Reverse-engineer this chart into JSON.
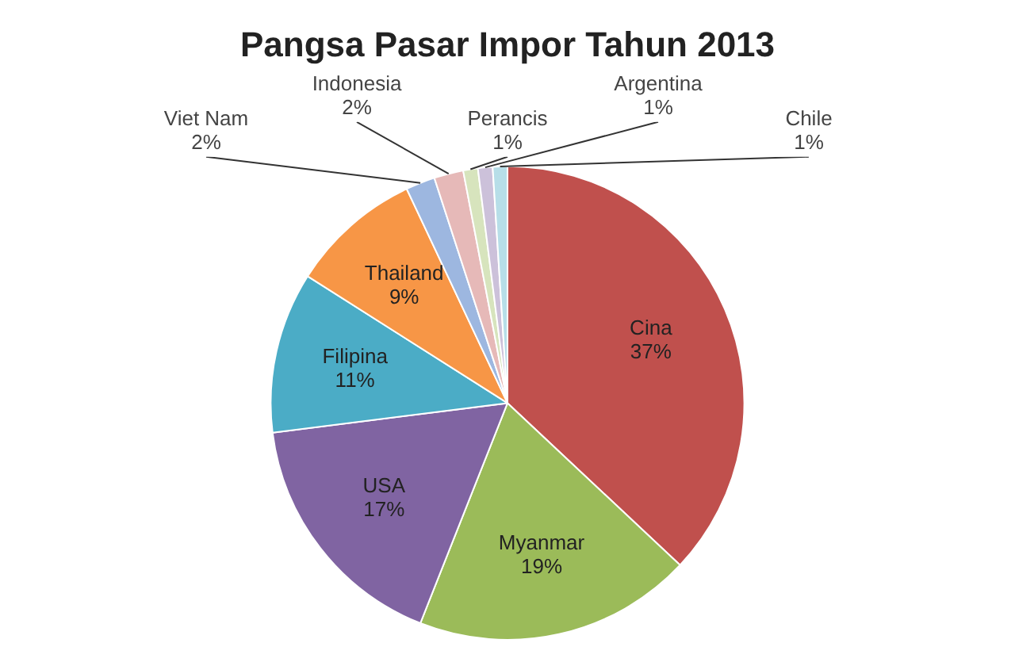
{
  "chart_data": {
    "type": "pie",
    "title": "Pangsa Pasar Impor Tahun 2013",
    "categories": [
      "Cina",
      "Myanmar",
      "USA",
      "Filipina",
      "Thailand",
      "Viet Nam",
      "Indonesia",
      "Perancis",
      "Argentina",
      "Chile"
    ],
    "values": [
      37,
      19,
      17,
      11,
      9,
      2,
      2,
      1,
      1,
      1
    ],
    "value_labels": [
      "37%",
      "19%",
      "17%",
      "11%",
      "9%",
      "2%",
      "2%",
      "1%",
      "1%",
      "1%"
    ],
    "colors": [
      "#c0504d",
      "#9bbb59",
      "#8064a2",
      "#4bacc6",
      "#f79646",
      "#9db7e0",
      "#e6b9b8",
      "#d7e4bd",
      "#ccc1da",
      "#b7dee8"
    ],
    "legend": false
  }
}
